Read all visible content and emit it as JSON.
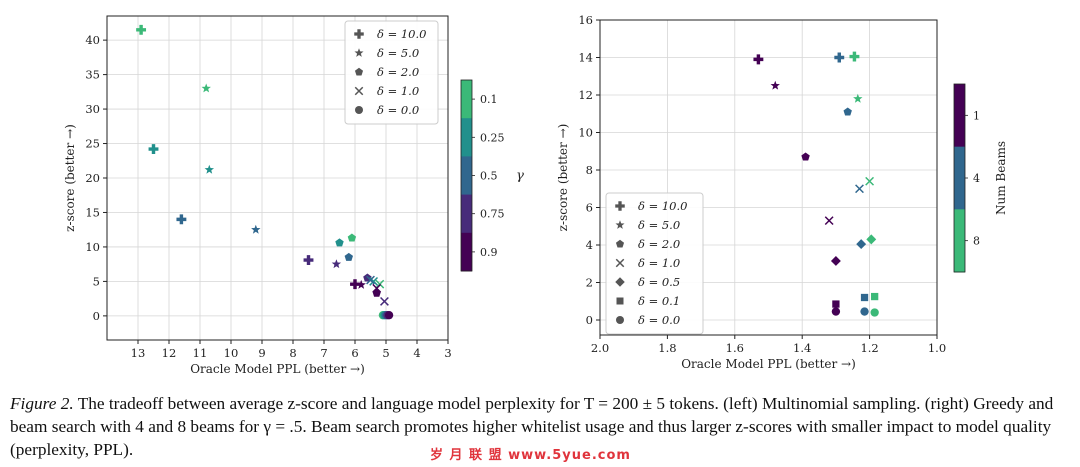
{
  "chart_data": [
    {
      "type": "scatter",
      "xlabel": "Oracle Model PPL (better →)",
      "ylabel": "z-score (better →)",
      "xlim": [
        14,
        3
      ],
      "ylim": [
        -3.5,
        43.5
      ],
      "xticks": [
        13,
        12,
        11,
        10,
        9,
        8,
        7,
        6,
        5,
        4,
        3
      ],
      "yticks": [
        0,
        5,
        10,
        15,
        20,
        25,
        30,
        35,
        40
      ],
      "grid": true,
      "legend": {
        "placement": "top-right",
        "entries": [
          {
            "marker": "plus",
            "label": "δ = 10.0"
          },
          {
            "marker": "star",
            "label": "δ = 5.0"
          },
          {
            "marker": "pentagon",
            "label": "δ = 2.0"
          },
          {
            "marker": "x",
            "label": "δ = 1.0"
          },
          {
            "marker": "circle",
            "label": "δ = 0.0"
          }
        ]
      },
      "colorbar": {
        "label": "γ",
        "ticks": [
          "0.1",
          "0.25",
          "0.5",
          "0.75",
          "0.9"
        ],
        "colors": [
          "#3bb978",
          "#21908c",
          "#30678e",
          "#472b7a",
          "#440154"
        ]
      },
      "points": [
        {
          "x": 12.9,
          "y": 41.5,
          "marker": "plus",
          "color": "#3bb978"
        },
        {
          "x": 12.5,
          "y": 24.2,
          "marker": "plus",
          "color": "#21908c"
        },
        {
          "x": 11.6,
          "y": 14.0,
          "marker": "plus",
          "color": "#30678e"
        },
        {
          "x": 7.5,
          "y": 8.1,
          "marker": "plus",
          "color": "#472b7a"
        },
        {
          "x": 6.0,
          "y": 4.6,
          "marker": "plus",
          "color": "#440154"
        },
        {
          "x": 10.8,
          "y": 33.0,
          "marker": "star",
          "color": "#3bb978"
        },
        {
          "x": 10.7,
          "y": 21.2,
          "marker": "star",
          "color": "#21908c"
        },
        {
          "x": 9.2,
          "y": 12.5,
          "marker": "star",
          "color": "#30678e"
        },
        {
          "x": 6.6,
          "y": 7.5,
          "marker": "star",
          "color": "#472b7a"
        },
        {
          "x": 5.8,
          "y": 4.5,
          "marker": "star",
          "color": "#440154"
        },
        {
          "x": 6.1,
          "y": 11.3,
          "marker": "pentagon",
          "color": "#3bb978"
        },
        {
          "x": 6.5,
          "y": 10.6,
          "marker": "pentagon",
          "color": "#21908c"
        },
        {
          "x": 6.2,
          "y": 8.5,
          "marker": "pentagon",
          "color": "#30678e"
        },
        {
          "x": 5.6,
          "y": 5.5,
          "marker": "pentagon",
          "color": "#472b7a"
        },
        {
          "x": 5.3,
          "y": 3.3,
          "marker": "pentagon",
          "color": "#440154"
        },
        {
          "x": 5.2,
          "y": 4.6,
          "marker": "x",
          "color": "#3bb978"
        },
        {
          "x": 5.4,
          "y": 5.0,
          "marker": "x",
          "color": "#21908c"
        },
        {
          "x": 5.5,
          "y": 5.2,
          "marker": "x",
          "color": "#30678e"
        },
        {
          "x": 5.05,
          "y": 2.1,
          "marker": "x",
          "color": "#472b7a"
        },
        {
          "x": 5.3,
          "y": 4.0,
          "marker": "x",
          "color": "#440154"
        },
        {
          "x": 5.1,
          "y": 0.1,
          "marker": "circle",
          "color": "#3bb978"
        },
        {
          "x": 5.05,
          "y": 0.1,
          "marker": "circle",
          "color": "#21908c"
        },
        {
          "x": 5.0,
          "y": 0.1,
          "marker": "circle",
          "color": "#30678e"
        },
        {
          "x": 4.95,
          "y": 0.1,
          "marker": "circle",
          "color": "#472b7a"
        },
        {
          "x": 4.9,
          "y": 0.1,
          "marker": "circle",
          "color": "#440154"
        }
      ]
    },
    {
      "type": "scatter",
      "xlabel": "Oracle Model PPL (better →)",
      "ylabel": "z-score (better →)",
      "xlim": [
        2.0,
        1.0
      ],
      "ylim": [
        -0.8,
        16.0
      ],
      "xticks": [
        2.0,
        1.8,
        1.6,
        1.4,
        1.2,
        1.0
      ],
      "yticks": [
        0,
        2,
        4,
        6,
        8,
        10,
        12,
        14,
        16
      ],
      "grid": true,
      "legend": {
        "placement": "lower-left",
        "entries": [
          {
            "marker": "plus",
            "label": "δ = 10.0"
          },
          {
            "marker": "star",
            "label": "δ = 5.0"
          },
          {
            "marker": "pentagon",
            "label": "δ = 2.0"
          },
          {
            "marker": "x",
            "label": "δ = 1.0"
          },
          {
            "marker": "diamond",
            "label": "δ = 0.5"
          },
          {
            "marker": "square",
            "label": "δ = 0.1"
          },
          {
            "marker": "circle",
            "label": "δ = 0.0"
          }
        ]
      },
      "colorbar": {
        "label": "Num Beams",
        "ticks": [
          "1",
          "4",
          "8"
        ],
        "colors": [
          "#440154",
          "#30678e",
          "#3bb978"
        ]
      },
      "points": [
        {
          "x": 1.53,
          "y": 13.9,
          "marker": "plus",
          "color": "#440154"
        },
        {
          "x": 1.29,
          "y": 14.0,
          "marker": "plus",
          "color": "#30678e"
        },
        {
          "x": 1.245,
          "y": 14.05,
          "marker": "plus",
          "color": "#3bb978"
        },
        {
          "x": 1.48,
          "y": 12.5,
          "marker": "star",
          "color": "#440154"
        },
        {
          "x": 1.235,
          "y": 11.8,
          "marker": "star",
          "color": "#3bb978"
        },
        {
          "x": 1.39,
          "y": 8.7,
          "marker": "pentagon",
          "color": "#440154"
        },
        {
          "x": 1.265,
          "y": 11.1,
          "marker": "pentagon",
          "color": "#30678e"
        },
        {
          "x": 1.32,
          "y": 5.3,
          "marker": "x",
          "color": "#440154"
        },
        {
          "x": 1.23,
          "y": 7.0,
          "marker": "x",
          "color": "#30678e"
        },
        {
          "x": 1.2,
          "y": 7.4,
          "marker": "x",
          "color": "#3bb978"
        },
        {
          "x": 1.3,
          "y": 3.15,
          "marker": "diamond",
          "color": "#440154"
        },
        {
          "x": 1.225,
          "y": 4.05,
          "marker": "diamond",
          "color": "#30678e"
        },
        {
          "x": 1.195,
          "y": 4.3,
          "marker": "diamond",
          "color": "#3bb978"
        },
        {
          "x": 1.3,
          "y": 0.85,
          "marker": "square",
          "color": "#440154"
        },
        {
          "x": 1.215,
          "y": 1.2,
          "marker": "square",
          "color": "#30678e"
        },
        {
          "x": 1.185,
          "y": 1.25,
          "marker": "square",
          "color": "#3bb978"
        },
        {
          "x": 1.3,
          "y": 0.45,
          "marker": "circle",
          "color": "#440154"
        },
        {
          "x": 1.215,
          "y": 0.45,
          "marker": "circle",
          "color": "#30678e"
        },
        {
          "x": 1.185,
          "y": 0.4,
          "marker": "circle",
          "color": "#3bb978"
        }
      ]
    }
  ],
  "caption": {
    "label": "Figure 2.",
    "text": " The tradeoff between average z-score and language model perplexity for T = 200 ± 5 tokens. (left) Multinomial sampling. (right) Greedy and beam search with 4 and 8 beams for γ = .5. Beam search promotes higher whitelist usage and thus larger z-scores with smaller impact to model quality (perplexity, PPL)."
  },
  "watermark": "岁 月 联 盟   www.5yue.com"
}
